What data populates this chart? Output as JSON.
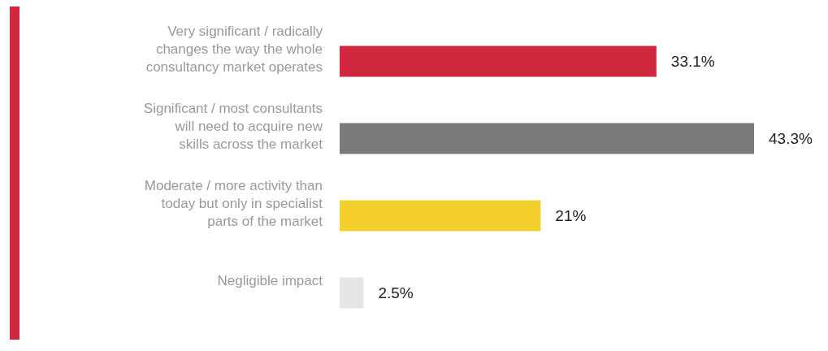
{
  "chart_data": {
    "type": "bar",
    "orientation": "horizontal",
    "categories": [
      "Very significant / radically changes the way the whole consultancy market operates",
      "Significant / most consultants will need to acquire new skills across the market",
      "Moderate / more activity than today but only in specialist parts of the market",
      "Negligible impact"
    ],
    "values": [
      33.1,
      43.3,
      21,
      2.5
    ],
    "value_labels": [
      "33.1%",
      "43.3%",
      "21%",
      "2.5%"
    ],
    "colors": [
      "#d0283e",
      "#7a7a7a",
      "#f3d02c",
      "#e6e6e6"
    ]
  }
}
